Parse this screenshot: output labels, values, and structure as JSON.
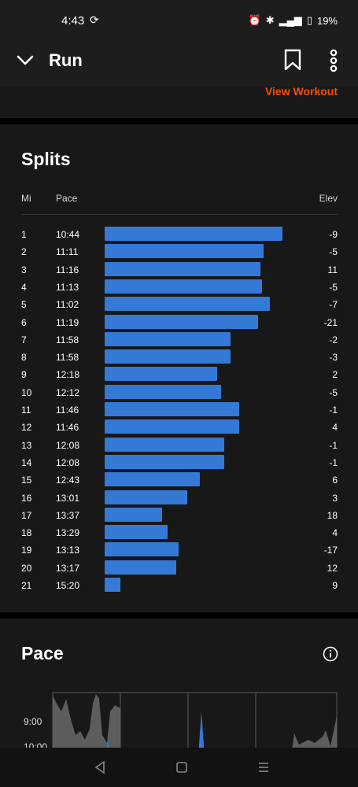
{
  "status": {
    "time": "4:43",
    "battery": "19%"
  },
  "header": {
    "title": "Run"
  },
  "top": {
    "view_workout": "View Workout"
  },
  "splits": {
    "title": "Splits",
    "col_mi": "Mi",
    "col_pace": "Pace",
    "col_elev": "Elev",
    "rows": [
      {
        "mi": "1",
        "pace": "10:44",
        "elev": "-9",
        "seconds": 644
      },
      {
        "mi": "2",
        "pace": "11:11",
        "elev": "-5",
        "seconds": 671
      },
      {
        "mi": "3",
        "pace": "11:16",
        "elev": "11",
        "seconds": 676
      },
      {
        "mi": "4",
        "pace": "11:13",
        "elev": "-5",
        "seconds": 673
      },
      {
        "mi": "5",
        "pace": "11:02",
        "elev": "-7",
        "seconds": 662
      },
      {
        "mi": "6",
        "pace": "11:19",
        "elev": "-21",
        "seconds": 679
      },
      {
        "mi": "7",
        "pace": "11:58",
        "elev": "-2",
        "seconds": 718
      },
      {
        "mi": "8",
        "pace": "11:58",
        "elev": "-3",
        "seconds": 718
      },
      {
        "mi": "9",
        "pace": "12:18",
        "elev": "2",
        "seconds": 738
      },
      {
        "mi": "10",
        "pace": "12:12",
        "elev": "-5",
        "seconds": 732
      },
      {
        "mi": "11",
        "pace": "11:46",
        "elev": "-1",
        "seconds": 706
      },
      {
        "mi": "12",
        "pace": "11:46",
        "elev": "4",
        "seconds": 706
      },
      {
        "mi": "13",
        "pace": "12:08",
        "elev": "-1",
        "seconds": 728
      },
      {
        "mi": "14",
        "pace": "12:08",
        "elev": "-1",
        "seconds": 728
      },
      {
        "mi": "15",
        "pace": "12:43",
        "elev": "6",
        "seconds": 763
      },
      {
        "mi": "16",
        "pace": "13:01",
        "elev": "3",
        "seconds": 781
      },
      {
        "mi": "17",
        "pace": "13:37",
        "elev": "18",
        "seconds": 817
      },
      {
        "mi": "18",
        "pace": "13:29",
        "elev": "4",
        "seconds": 809
      },
      {
        "mi": "19",
        "pace": "13:13",
        "elev": "-17",
        "seconds": 793
      },
      {
        "mi": "20",
        "pace": "13:17",
        "elev": "12",
        "seconds": 797
      },
      {
        "mi": "21",
        "pace": "15:20",
        "elev": "9",
        "seconds": 920
      }
    ]
  },
  "pace": {
    "title": "Pace",
    "tick_labels": [
      "9:00",
      "10:00"
    ]
  },
  "colors": {
    "accent": "#fc4c02",
    "bar": "#3579d6",
    "card": "#181818",
    "header": "#1d1d1d"
  }
}
